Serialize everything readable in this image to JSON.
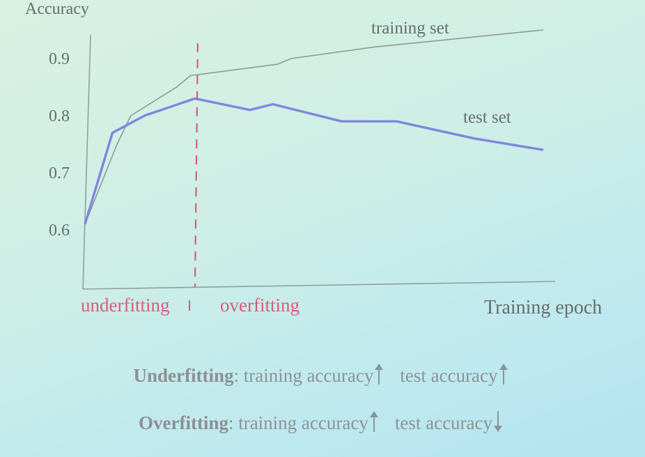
{
  "chart_data": {
    "type": "line",
    "ylabel": "Accuracy",
    "xlabel": "Training epoch",
    "yticks": [
      "0.9",
      "0.8",
      "0.7",
      "0.6"
    ],
    "ylim": [
      0.5,
      0.95
    ],
    "xlim": [
      0,
      10
    ],
    "grid": false,
    "series": [
      {
        "name": "training set",
        "color": "#8d9994",
        "x": [
          0,
          0.7,
          1.0,
          2.0,
          2.3,
          4.2,
          4.5,
          6.3,
          10
        ],
        "y": [
          0.61,
          0.75,
          0.8,
          0.85,
          0.87,
          0.89,
          0.9,
          0.92,
          0.95
        ]
      },
      {
        "name": "test set",
        "color": "#7f86dc",
        "x": [
          0,
          0.6,
          1.3,
          2.4,
          3.6,
          4.1,
          5.6,
          6.8,
          8.5,
          10
        ],
        "y": [
          0.61,
          0.77,
          0.8,
          0.83,
          0.81,
          0.82,
          0.79,
          0.79,
          0.76,
          0.74
        ]
      }
    ],
    "threshold": {
      "x": 2.4,
      "color": "#d85c79"
    },
    "zones": {
      "left": "underfitting",
      "right": "overfitting"
    }
  },
  "notes": {
    "under": {
      "term": "Underfitting",
      "training": ": training accuracy",
      "test": "test accuracy",
      "training_dir": "up",
      "test_dir": "up"
    },
    "over": {
      "term": "Overfitting",
      "training": ": training accuracy",
      "test": "test accuracy",
      "training_dir": "up",
      "test_dir": "down"
    }
  }
}
